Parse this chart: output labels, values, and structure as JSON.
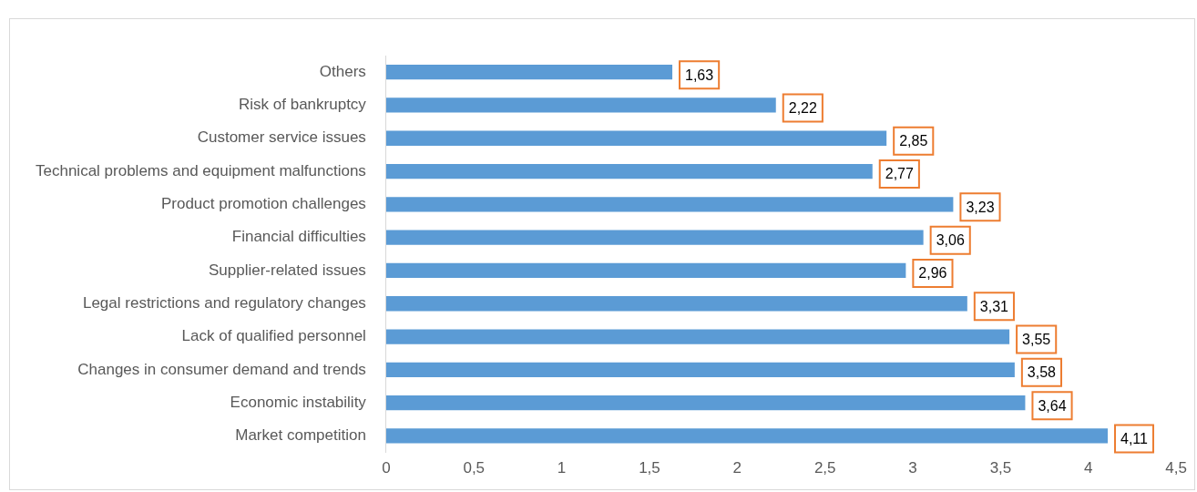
{
  "chart_data": {
    "type": "bar",
    "orientation": "horizontal",
    "categories": [
      "Others",
      "Risk of bankruptcy",
      "Customer service issues",
      "Technical problems and equipment malfunctions",
      "Product promotion challenges",
      "Financial difficulties",
      "Supplier-related issues",
      "Legal restrictions and regulatory changes",
      "Lack of qualified personnel",
      "Changes in consumer demand and trends",
      "Economic instability",
      "Market competition"
    ],
    "values": [
      1.63,
      2.22,
      2.85,
      2.77,
      3.23,
      3.06,
      2.96,
      3.31,
      3.55,
      3.58,
      3.64,
      4.11
    ],
    "value_labels": [
      "1,63",
      "2,22",
      "2,85",
      "2,77",
      "3,23",
      "3,06",
      "2,96",
      "3,31",
      "3,55",
      "3,58",
      "3,64",
      "4,11"
    ],
    "color": "#5b9bd5",
    "xlim": [
      0,
      4.5
    ],
    "xticks": [
      0,
      {
        "value": 0.5,
        "label": "0,5"
      },
      1,
      {
        "value": 1.5,
        "label": "1,5"
      },
      2,
      {
        "value": 2.5,
        "label": "2,5"
      },
      3,
      {
        "value": 3.5,
        "label": "3,5"
      },
      4,
      {
        "value": 4.5,
        "label": "4,5"
      }
    ],
    "grid": false,
    "legend": false
  }
}
